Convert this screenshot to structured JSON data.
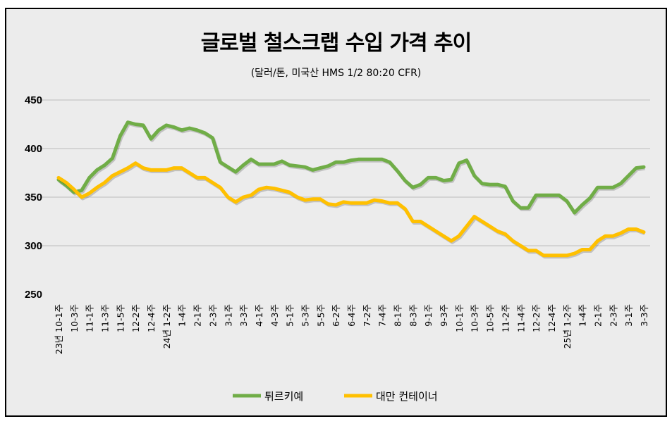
{
  "chart_data": {
    "type": "line",
    "title": "글로벌 철스크랩 수입 가격 추이",
    "subtitle": "(달러/톤, 미국산 HMS 1/2 80:20 CFR)",
    "xlabel": "",
    "ylabel": "",
    "ylim": [
      250,
      450
    ],
    "yticks": [
      "250",
      "300",
      "350",
      "400",
      "450"
    ],
    "grid": true,
    "legend_position": "bottom",
    "x_tick_labels": [
      "23년 10-1주",
      "10-3주",
      "11-1주",
      "11-3주",
      "11-5주",
      "12-2주",
      "12-4주",
      "24년 1-2주",
      "1-4주",
      "2-1주",
      "2-3주",
      "3-1주",
      "3-3주",
      "4-1주",
      "4-3주",
      "5-1주",
      "5-3주",
      "5-5주",
      "6-2주",
      "6-4주",
      "7-2주",
      "7-4주",
      "8-1주",
      "8-3주",
      "9-1주",
      "9-3주",
      "10-1주",
      "10-3주",
      "10-5주",
      "11-2주",
      "11-4주",
      "12-2주",
      "12-4주",
      "25년 1-2주",
      "1-4주",
      "2-1주",
      "2-3주",
      "3-1주",
      "3-3주"
    ],
    "series": [
      {
        "name": "튀르키예",
        "color": "#70ad47",
        "values": [
          368,
          362,
          355,
          357,
          370,
          378,
          383,
          390,
          413,
          427,
          425,
          424,
          410,
          419,
          424,
          422,
          419,
          421,
          419,
          416,
          411,
          386,
          381,
          376,
          383,
          389,
          384,
          384,
          384,
          387,
          383,
          382,
          381,
          378,
          380,
          382,
          386,
          386,
          388,
          389,
          389,
          389,
          389,
          386,
          377,
          367,
          360,
          363,
          370,
          370,
          367,
          368,
          385,
          388,
          372,
          364,
          363,
          363,
          361,
          346,
          339,
          339,
          352,
          352,
          352,
          352,
          346,
          334,
          342,
          349,
          360,
          360,
          360,
          364,
          372,
          380,
          381
        ]
      },
      {
        "name": "대만 컨테이너",
        "color": "#ffc000",
        "values": [
          370,
          365,
          358,
          350,
          354,
          360,
          365,
          372,
          376,
          380,
          385,
          380,
          378,
          378,
          378,
          380,
          380,
          375,
          370,
          370,
          365,
          360,
          350,
          345,
          350,
          352,
          358,
          360,
          359,
          357,
          355,
          350,
          347,
          348,
          348,
          343,
          342,
          345,
          344,
          344,
          344,
          347,
          346,
          344,
          344,
          338,
          325,
          325,
          320,
          315,
          310,
          305,
          310,
          320,
          330,
          325,
          320,
          315,
          312,
          305,
          300,
          295,
          295,
          290,
          290,
          290,
          290,
          292,
          296,
          296,
          305,
          310,
          310,
          313,
          317,
          317,
          314
        ]
      }
    ]
  }
}
